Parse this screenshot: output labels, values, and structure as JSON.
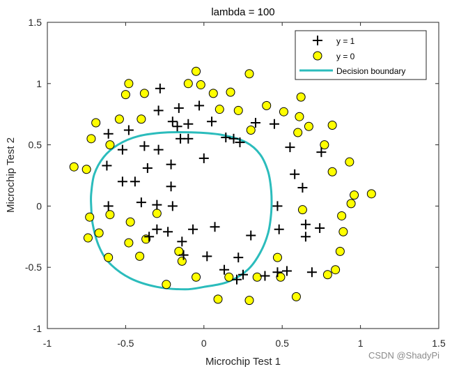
{
  "chart_data": {
    "type": "scatter",
    "title": "lambda = 100",
    "xlabel": "Microchip Test 1",
    "ylabel": "Microchip Test 2",
    "xlim": [
      -1,
      1.5
    ],
    "ylim": [
      -1,
      1.5
    ],
    "xticks": [
      -1,
      -0.5,
      0,
      0.5,
      1,
      1.5
    ],
    "yticks": [
      -1,
      -0.5,
      0,
      0.5,
      1,
      1.5
    ],
    "xtick_labels": [
      "-1",
      "-0.5",
      "0",
      "0.5",
      "1",
      "1.5"
    ],
    "ytick_labels": [
      "-1",
      "-0.5",
      "0",
      "0.5",
      "1",
      "1.5"
    ],
    "grid": false,
    "legend_position": "top-right",
    "legend": [
      {
        "label": "y = 1",
        "marker": "plus",
        "color": "#000000"
      },
      {
        "label": "y = 0",
        "marker": "circle",
        "color": "#ffff00"
      },
      {
        "label": "Decision boundary",
        "marker": "line",
        "color": "#2bbcbc"
      }
    ],
    "series": [
      {
        "name": "y = 1",
        "marker": "plus",
        "color": "#000000",
        "points": [
          [
            -0.28,
            0.96
          ],
          [
            -0.29,
            0.78
          ],
          [
            -0.16,
            0.8
          ],
          [
            -0.03,
            0.82
          ],
          [
            -0.2,
            0.69
          ],
          [
            -0.17,
            0.65
          ],
          [
            -0.1,
            0.67
          ],
          [
            0.05,
            0.69
          ],
          [
            -0.61,
            0.59
          ],
          [
            -0.48,
            0.62
          ],
          [
            0.14,
            0.56
          ],
          [
            0.19,
            0.55
          ],
          [
            0.33,
            0.68
          ],
          [
            0.45,
            0.67
          ],
          [
            0.23,
            0.52
          ],
          [
            -0.52,
            0.46
          ],
          [
            -0.38,
            0.49
          ],
          [
            -0.29,
            0.46
          ],
          [
            -0.15,
            0.55
          ],
          [
            -0.1,
            0.55
          ],
          [
            0.55,
            0.48
          ],
          [
            0.75,
            0.44
          ],
          [
            -0.62,
            0.33
          ],
          [
            -0.36,
            0.31
          ],
          [
            -0.21,
            0.34
          ],
          [
            0.0,
            0.39
          ],
          [
            0.58,
            0.26
          ],
          [
            -0.52,
            0.2
          ],
          [
            -0.44,
            0.2
          ],
          [
            -0.21,
            0.16
          ],
          [
            0.63,
            0.15
          ],
          [
            -0.2,
            0.0
          ],
          [
            -0.4,
            0.03
          ],
          [
            -0.61,
            0.0
          ],
          [
            -0.3,
            0.01
          ],
          [
            0.47,
            0.0
          ],
          [
            -0.35,
            -0.25
          ],
          [
            -0.3,
            -0.19
          ],
          [
            -0.23,
            -0.21
          ],
          [
            -0.07,
            -0.19
          ],
          [
            0.07,
            -0.17
          ],
          [
            0.3,
            -0.24
          ],
          [
            -0.14,
            -0.29
          ],
          [
            0.65,
            -0.15
          ],
          [
            0.74,
            -0.18
          ],
          [
            0.48,
            -0.19
          ],
          [
            0.65,
            -0.25
          ],
          [
            -0.13,
            -0.4
          ],
          [
            0.02,
            -0.41
          ],
          [
            0.22,
            -0.42
          ],
          [
            0.13,
            -0.52
          ],
          [
            0.25,
            -0.56
          ],
          [
            0.39,
            -0.57
          ],
          [
            0.47,
            -0.54
          ],
          [
            0.53,
            -0.53
          ],
          [
            0.69,
            -0.54
          ],
          [
            0.21,
            -0.6
          ]
        ]
      },
      {
        "name": "y = 0",
        "marker": "circle",
        "color": "#ffff00",
        "points": [
          [
            -0.05,
            1.1
          ],
          [
            -0.48,
            1.0
          ],
          [
            -0.1,
            1.0
          ],
          [
            -0.02,
            0.99
          ],
          [
            0.29,
            1.08
          ],
          [
            -0.5,
            0.91
          ],
          [
            -0.38,
            0.92
          ],
          [
            0.06,
            0.92
          ],
          [
            0.17,
            0.93
          ],
          [
            0.62,
            0.89
          ],
          [
            0.4,
            0.82
          ],
          [
            0.51,
            0.77
          ],
          [
            0.1,
            0.79
          ],
          [
            0.22,
            0.78
          ],
          [
            0.61,
            0.73
          ],
          [
            -0.69,
            0.68
          ],
          [
            -0.54,
            0.71
          ],
          [
            -0.4,
            0.71
          ],
          [
            0.3,
            0.62
          ],
          [
            0.6,
            0.6
          ],
          [
            0.67,
            0.65
          ],
          [
            0.82,
            0.66
          ],
          [
            -0.72,
            0.55
          ],
          [
            0.77,
            0.5
          ],
          [
            -0.6,
            0.5
          ],
          [
            -0.83,
            0.32
          ],
          [
            -0.75,
            0.3
          ],
          [
            0.82,
            0.28
          ],
          [
            0.93,
            0.36
          ],
          [
            0.96,
            0.09
          ],
          [
            1.07,
            0.1
          ],
          [
            0.94,
            0.02
          ],
          [
            -0.6,
            -0.07
          ],
          [
            -0.73,
            -0.09
          ],
          [
            -0.3,
            -0.06
          ],
          [
            0.63,
            -0.03
          ],
          [
            0.88,
            -0.08
          ],
          [
            -0.47,
            -0.13
          ],
          [
            -0.67,
            -0.22
          ],
          [
            -0.37,
            -0.27
          ],
          [
            0.89,
            -0.21
          ],
          [
            -0.48,
            -0.3
          ],
          [
            -0.74,
            -0.26
          ],
          [
            -0.16,
            -0.37
          ],
          [
            0.87,
            -0.37
          ],
          [
            -0.61,
            -0.42
          ],
          [
            -0.41,
            -0.41
          ],
          [
            -0.14,
            -0.45
          ],
          [
            0.47,
            -0.42
          ],
          [
            0.49,
            -0.58
          ],
          [
            0.34,
            -0.58
          ],
          [
            0.16,
            -0.58
          ],
          [
            -0.05,
            -0.58
          ],
          [
            0.84,
            -0.52
          ],
          [
            0.79,
            -0.56
          ],
          [
            -0.24,
            -0.64
          ],
          [
            0.09,
            -0.76
          ],
          [
            0.29,
            -0.77
          ],
          [
            0.59,
            -0.74
          ]
        ]
      },
      {
        "name": "Decision boundary",
        "type": "line",
        "color": "#2bbcbc",
        "points": [
          [
            -0.72,
            0.1
          ],
          [
            -0.7,
            0.26
          ],
          [
            -0.64,
            0.4
          ],
          [
            -0.55,
            0.5
          ],
          [
            -0.42,
            0.57
          ],
          [
            -0.25,
            0.6
          ],
          [
            -0.05,
            0.6
          ],
          [
            0.12,
            0.58
          ],
          [
            0.27,
            0.52
          ],
          [
            0.36,
            0.42
          ],
          [
            0.41,
            0.28
          ],
          [
            0.43,
            0.12
          ],
          [
            0.43,
            -0.05
          ],
          [
            0.41,
            -0.22
          ],
          [
            0.36,
            -0.38
          ],
          [
            0.28,
            -0.52
          ],
          [
            0.15,
            -0.62
          ],
          [
            0.0,
            -0.66
          ],
          [
            -0.12,
            -0.68
          ],
          [
            -0.3,
            -0.66
          ],
          [
            -0.47,
            -0.59
          ],
          [
            -0.6,
            -0.47
          ],
          [
            -0.67,
            -0.33
          ],
          [
            -0.71,
            -0.15
          ],
          [
            -0.72,
            0.0
          ],
          [
            -0.72,
            0.1
          ]
        ]
      }
    ]
  },
  "watermark": "CSDN @ShadyPi"
}
